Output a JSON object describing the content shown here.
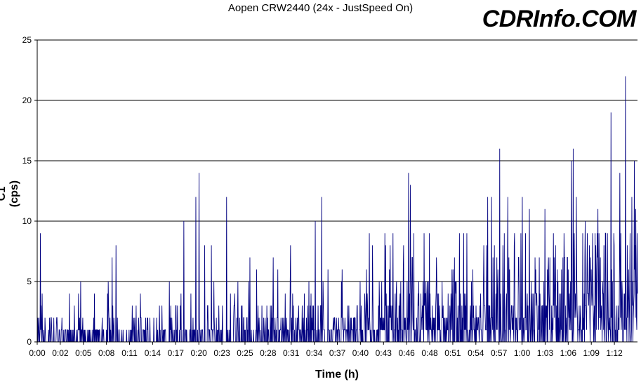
{
  "chart_data": {
    "type": "line",
    "title": "Aopen CRW2440 (24x - JustSpeed On)",
    "watermark": "CDRInfo.COM",
    "xlabel": "Time (h)",
    "ylabel": "C1 (cps)",
    "ylim": [
      0,
      25
    ],
    "y_ticks": [
      0,
      5,
      10,
      15,
      20,
      25
    ],
    "grid": "horizontal",
    "x_ticks": [
      "0:00",
      "0:02",
      "0:05",
      "0:08",
      "0:11",
      "0:14",
      "0:17",
      "0:20",
      "0:23",
      "0:25",
      "0:28",
      "0:31",
      "0:34",
      "0:37",
      "0:40",
      "0:43",
      "0:46",
      "0:48",
      "0:51",
      "0:54",
      "0:57",
      "1:00",
      "1:03",
      "1:06",
      "1:09",
      "1:12"
    ],
    "x_range_minutes": [
      0,
      74.5
    ],
    "line_color": "#000080",
    "peaks": [
      {
        "t": 0.4,
        "c1": 9
      },
      {
        "t": 5.4,
        "c1": 5
      },
      {
        "t": 9.3,
        "c1": 7
      },
      {
        "t": 9.8,
        "c1": 8
      },
      {
        "t": 18.2,
        "c1": 10
      },
      {
        "t": 19.7,
        "c1": 12
      },
      {
        "t": 20.1,
        "c1": 14
      },
      {
        "t": 20.8,
        "c1": 8
      },
      {
        "t": 21.6,
        "c1": 8
      },
      {
        "t": 23.5,
        "c1": 12
      },
      {
        "t": 26.4,
        "c1": 7
      },
      {
        "t": 29.3,
        "c1": 7
      },
      {
        "t": 34.5,
        "c1": 10
      },
      {
        "t": 35.3,
        "c1": 12
      },
      {
        "t": 41.2,
        "c1": 9
      },
      {
        "t": 41.6,
        "c1": 8
      },
      {
        "t": 43.8,
        "c1": 8
      },
      {
        "t": 46.1,
        "c1": 14
      },
      {
        "t": 46.3,
        "c1": 13
      },
      {
        "t": 48.0,
        "c1": 9
      },
      {
        "t": 52.4,
        "c1": 9
      },
      {
        "t": 55.9,
        "c1": 12
      },
      {
        "t": 56.4,
        "c1": 12
      },
      {
        "t": 57.4,
        "c1": 16
      },
      {
        "t": 58.4,
        "c1": 12
      },
      {
        "t": 60.2,
        "c1": 12
      },
      {
        "t": 61.1,
        "c1": 11
      },
      {
        "t": 63.0,
        "c1": 11
      },
      {
        "t": 66.3,
        "c1": 15
      },
      {
        "t": 66.5,
        "c1": 16
      },
      {
        "t": 66.9,
        "c1": 12
      },
      {
        "t": 68.0,
        "c1": 10
      },
      {
        "t": 69.6,
        "c1": 11
      },
      {
        "t": 71.2,
        "c1": 19
      },
      {
        "t": 72.3,
        "c1": 14
      },
      {
        "t": 73.0,
        "c1": 22
      },
      {
        "t": 73.8,
        "c1": 12
      },
      {
        "t": 74.1,
        "c1": 15
      },
      {
        "t": 74.3,
        "c1": 11
      }
    ]
  }
}
